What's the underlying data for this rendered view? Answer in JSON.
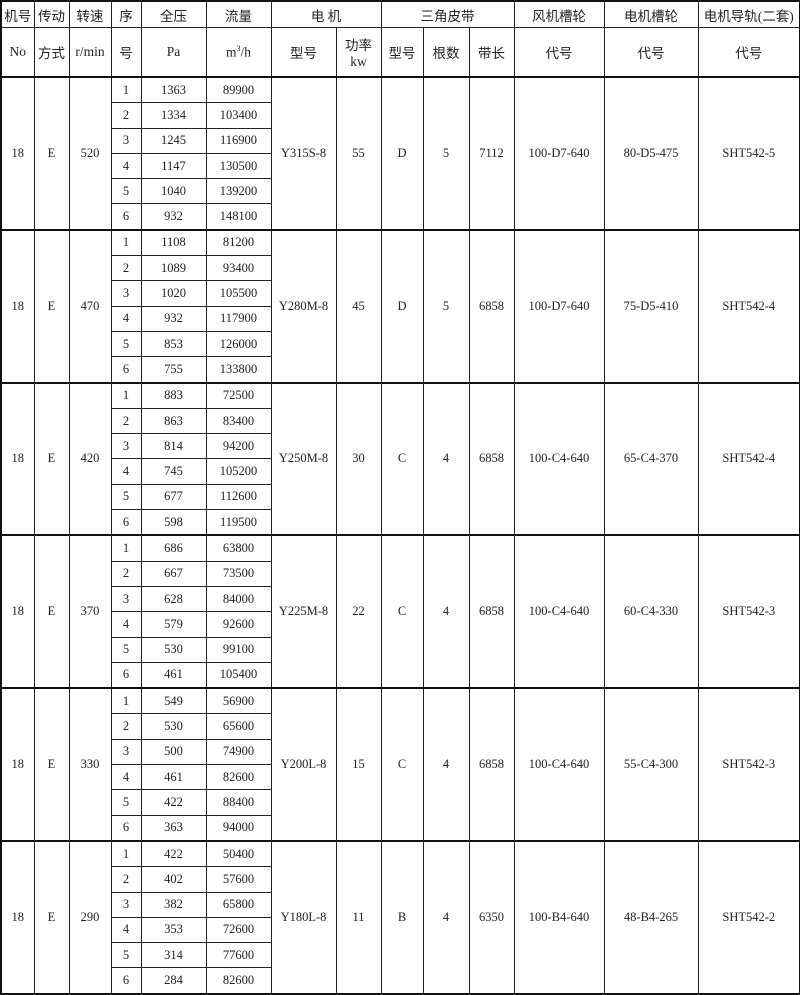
{
  "header": {
    "machine_no": "机号",
    "machine_no_unit": "No",
    "drive": "传动",
    "drive_sub": "方式",
    "speed": "转速",
    "speed_unit": "r/min",
    "seq": "序",
    "seq_sub": "号",
    "pressure": "全压",
    "pressure_unit": "Pa",
    "flow": "流量",
    "flow_unit_base": "m",
    "flow_unit_sup": "3",
    "flow_unit_tail": "/h",
    "motor": "电  机",
    "motor_model": "型号",
    "motor_power": "功率",
    "motor_power_unit": "kw",
    "belt": "三角皮带",
    "belt_model": "型号",
    "belt_count": "根数",
    "belt_length": "带长",
    "fan_pulley": "风机槽轮",
    "fan_pulley_code": "代号",
    "motor_pulley": "电机槽轮",
    "motor_pulley_code": "代号",
    "motor_rail": "电机导轨(二套)",
    "motor_rail_code": "代号"
  },
  "groups": [
    {
      "no": "18",
      "drive": "E",
      "speed": "520",
      "motor_model": "Y315S-8",
      "power": "55",
      "belt_model": "D",
      "belt_count": "5",
      "belt_length": "7112",
      "fan_pulley": "100-D7-640",
      "motor_pulley": "80-D5-475",
      "rail": "SHT542-5",
      "rows": [
        [
          "1",
          "1363",
          "89900"
        ],
        [
          "2",
          "1334",
          "103400"
        ],
        [
          "3",
          "1245",
          "116900"
        ],
        [
          "4",
          "1147",
          "130500"
        ],
        [
          "5",
          "1040",
          "139200"
        ],
        [
          "6",
          "932",
          "148100"
        ]
      ]
    },
    {
      "no": "18",
      "drive": "E",
      "speed": "470",
      "motor_model": "Y280M-8",
      "power": "45",
      "belt_model": "D",
      "belt_count": "5",
      "belt_length": "6858",
      "fan_pulley": "100-D7-640",
      "motor_pulley": "75-D5-410",
      "rail": "SHT542-4",
      "rows": [
        [
          "1",
          "1108",
          "81200"
        ],
        [
          "2",
          "1089",
          "93400"
        ],
        [
          "3",
          "1020",
          "105500"
        ],
        [
          "4",
          "932",
          "117900"
        ],
        [
          "5",
          "853",
          "126000"
        ],
        [
          "6",
          "755",
          "133800"
        ]
      ]
    },
    {
      "no": "18",
      "drive": "E",
      "speed": "420",
      "motor_model": "Y250M-8",
      "power": "30",
      "belt_model": "C",
      "belt_count": "4",
      "belt_length": "6858",
      "fan_pulley": "100-C4-640",
      "motor_pulley": "65-C4-370",
      "rail": "SHT542-4",
      "rows": [
        [
          "1",
          "883",
          "72500"
        ],
        [
          "2",
          "863",
          "83400"
        ],
        [
          "3",
          "814",
          "94200"
        ],
        [
          "4",
          "745",
          "105200"
        ],
        [
          "5",
          "677",
          "112600"
        ],
        [
          "6",
          "598",
          "119500"
        ]
      ]
    },
    {
      "no": "18",
      "drive": "E",
      "speed": "370",
      "motor_model": "Y225M-8",
      "power": "22",
      "belt_model": "C",
      "belt_count": "4",
      "belt_length": "6858",
      "fan_pulley": "100-C4-640",
      "motor_pulley": "60-C4-330",
      "rail": "SHT542-3",
      "rows": [
        [
          "1",
          "686",
          "63800"
        ],
        [
          "2",
          "667",
          "73500"
        ],
        [
          "3",
          "628",
          "84000"
        ],
        [
          "4",
          "579",
          "92600"
        ],
        [
          "5",
          "530",
          "99100"
        ],
        [
          "6",
          "461",
          "105400"
        ]
      ]
    },
    {
      "no": "18",
      "drive": "E",
      "speed": "330",
      "motor_model": "Y200L-8",
      "power": "15",
      "belt_model": "C",
      "belt_count": "4",
      "belt_length": "6858",
      "fan_pulley": "100-C4-640",
      "motor_pulley": "55-C4-300",
      "rail": "SHT542-3",
      "rows": [
        [
          "1",
          "549",
          "56900"
        ],
        [
          "2",
          "530",
          "65600"
        ],
        [
          "3",
          "500",
          "74900"
        ],
        [
          "4",
          "461",
          "82600"
        ],
        [
          "5",
          "422",
          "88400"
        ],
        [
          "6",
          "363",
          "94000"
        ]
      ]
    },
    {
      "no": "18",
      "drive": "E",
      "speed": "290",
      "motor_model": "Y180L-8",
      "power": "11",
      "belt_model": "B",
      "belt_count": "4",
      "belt_length": "6350",
      "fan_pulley": "100-B4-640",
      "motor_pulley": "48-B4-265",
      "rail": "SHT542-2",
      "rows": [
        [
          "1",
          "422",
          "50400"
        ],
        [
          "2",
          "402",
          "57600"
        ],
        [
          "3",
          "382",
          "65800"
        ],
        [
          "4",
          "353",
          "72600"
        ],
        [
          "5",
          "314",
          "77600"
        ],
        [
          "6",
          "284",
          "82600"
        ]
      ]
    }
  ]
}
